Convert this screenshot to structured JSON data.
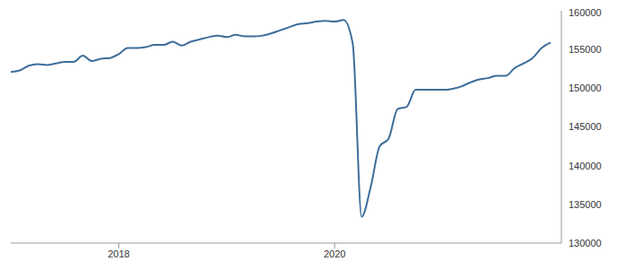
{
  "chart_data": {
    "type": "line",
    "x": [
      2017,
      2017.083,
      2017.167,
      2017.25,
      2017.333,
      2017.417,
      2017.5,
      2017.583,
      2017.667,
      2017.75,
      2017.833,
      2017.917,
      2018,
      2018.083,
      2018.167,
      2018.25,
      2018.333,
      2018.417,
      2018.5,
      2018.583,
      2018.667,
      2018.75,
      2018.833,
      2018.917,
      2019,
      2019.083,
      2019.167,
      2019.25,
      2019.333,
      2019.417,
      2019.5,
      2019.583,
      2019.667,
      2019.75,
      2019.833,
      2019.917,
      2020,
      2020.083,
      2020.167,
      2020.25,
      2020.333,
      2020.417,
      2020.5,
      2020.583,
      2020.667,
      2020.75,
      2020.833,
      2020.917,
      2021,
      2021.083,
      2021.167,
      2021.25,
      2021.333,
      2021.417,
      2021.5,
      2021.583,
      2021.667,
      2021.75,
      2021.833,
      2021.917,
      2022
    ],
    "values": [
      152100,
      152300,
      152900,
      153100,
      153000,
      153200,
      153400,
      153400,
      154200,
      153500,
      153800,
      153900,
      154400,
      155200,
      155200,
      155300,
      155600,
      155600,
      156000,
      155500,
      156000,
      156300,
      156600,
      156800,
      156600,
      156900,
      156700,
      156700,
      156800,
      157100,
      157500,
      157900,
      158300,
      158400,
      158600,
      158700,
      158600,
      158800,
      155800,
      133400,
      137200,
      142500,
      143500,
      147300,
      147600,
      149800,
      149800,
      149800,
      149800,
      149900,
      150200,
      150700,
      151100,
      151300,
      151600,
      151600,
      152600,
      153200,
      153900,
      155200,
      155900
    ],
    "color": "#3d6e9a",
    "xlim": [
      2017,
      2022.1
    ],
    "xticks": [
      2018,
      2020
    ],
    "ylim": [
      130000,
      160000
    ],
    "yticks": [
      130000,
      135000,
      140000,
      145000,
      150000,
      155000,
      160000
    ],
    "grid": false
  }
}
